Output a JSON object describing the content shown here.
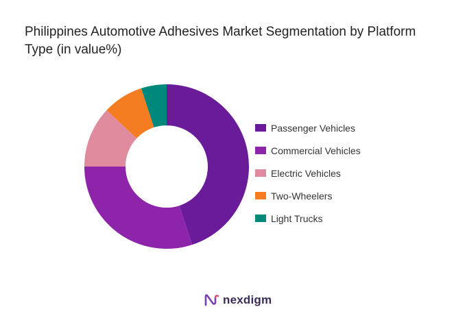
{
  "title": "Philippines Automotive Adhesives Market Segmentation by Platform Type (in value%)",
  "logo_text": "nexdigm",
  "chart_data": {
    "type": "pie",
    "subtype": "donut",
    "title": "Philippines Automotive Adhesives Market Segmentation by Platform Type (in value%)",
    "legend_position": "right",
    "categories": [
      "Passenger Vehicles",
      "Commercial Vehicles",
      "Electric Vehicles",
      "Two-Wheelers",
      "Light Trucks"
    ],
    "values": [
      45,
      30,
      12,
      8,
      5
    ],
    "colors": [
      "#6a1b9a",
      "#8e24aa",
      "#e08a9e",
      "#f57c20",
      "#00897b"
    ]
  }
}
